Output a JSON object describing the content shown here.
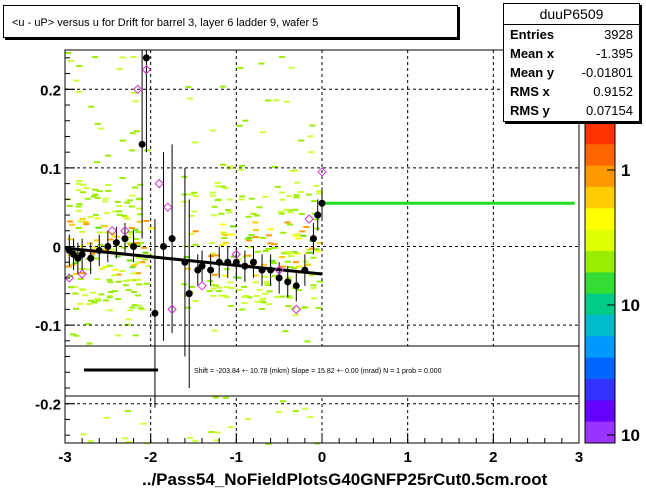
{
  "title": "<u - uP>       versus   u for Drift for barrel 3, layer 6 ladder 9, wafer 5",
  "stats": {
    "name": "duuP6509",
    "rows": [
      {
        "key": "Entries",
        "value": "3928"
      },
      {
        "key": "Mean x",
        "value": "-1.395"
      },
      {
        "key": "Mean y",
        "value": "-0.01801"
      },
      {
        "key": "RMS x",
        "value": "0.9152"
      },
      {
        "key": "RMS y",
        "value": "0.07154"
      }
    ]
  },
  "footer_label": "../Pass54_NoFieldPlotsG40GNFP25rCut0.5cm.root",
  "fit_legend": "Shift =  -203.84 +- 10.78 (mkm) Slope =    15.82 +- 0.00 (mrad)  N = 1 prob = 0.000",
  "colors": {
    "profile_marker": "#000000",
    "open_marker": "#cc33cc",
    "fit_line": "#000000",
    "green_line": "#22dd22",
    "grid": "#000000"
  },
  "chart_data": {
    "type": "scatter",
    "title": "<u - uP>       versus   u for Drift for barrel 3, layer 6 ladder 9, wafer 5",
    "xlabel": "",
    "ylabel": "",
    "xlim": [
      -3,
      3
    ],
    "ylim": [
      -0.25,
      0.25
    ],
    "x_ticks": [
      "-3",
      "-2",
      "-1",
      "0",
      "1",
      "2",
      "3"
    ],
    "y_ticks": [
      "-0.2",
      "-0.1",
      "0",
      "0.1",
      "0.2"
    ],
    "grid": true,
    "colorbar": {
      "ticks": [
        "1",
        "10",
        "10"
      ],
      "scale": "log"
    },
    "profile_points": [
      {
        "x": -2.95,
        "y": -0.005
      },
      {
        "x": -2.9,
        "y": -0.01
      },
      {
        "x": -2.85,
        "y": -0.015
      },
      {
        "x": -2.8,
        "y": -0.01
      },
      {
        "x": -2.7,
        "y": -0.015
      },
      {
        "x": -2.6,
        "y": -0.005
      },
      {
        "x": -2.5,
        "y": 0.0
      },
      {
        "x": -2.4,
        "y": 0.005
      },
      {
        "x": -2.3,
        "y": 0.01
      },
      {
        "x": -2.2,
        "y": 0.0
      },
      {
        "x": -2.1,
        "y": 0.13
      },
      {
        "x": -2.05,
        "y": 0.24
      },
      {
        "x": -1.95,
        "y": -0.085
      },
      {
        "x": -1.85,
        "y": 0.0
      },
      {
        "x": -1.75,
        "y": 0.01
      },
      {
        "x": -1.6,
        "y": -0.02
      },
      {
        "x": -1.55,
        "y": -0.06
      },
      {
        "x": -1.45,
        "y": -0.03
      },
      {
        "x": -1.4,
        "y": -0.025
      },
      {
        "x": -1.3,
        "y": -0.03
      },
      {
        "x": -1.2,
        "y": -0.02
      },
      {
        "x": -1.1,
        "y": -0.02
      },
      {
        "x": -1.0,
        "y": -0.02
      },
      {
        "x": -0.9,
        "y": -0.025
      },
      {
        "x": -0.8,
        "y": -0.02
      },
      {
        "x": -0.7,
        "y": -0.03
      },
      {
        "x": -0.6,
        "y": -0.03
      },
      {
        "x": -0.5,
        "y": -0.04
      },
      {
        "x": -0.4,
        "y": -0.045
      },
      {
        "x": -0.3,
        "y": -0.05
      },
      {
        "x": -0.2,
        "y": -0.03
      },
      {
        "x": -0.1,
        "y": 0.01
      },
      {
        "x": -0.05,
        "y": 0.04
      },
      {
        "x": 0.0,
        "y": 0.055
      }
    ],
    "open_points": [
      {
        "x": -2.95,
        "y": -0.04
      },
      {
        "x": -2.8,
        "y": -0.035
      },
      {
        "x": -2.45,
        "y": 0.02
      },
      {
        "x": -2.3,
        "y": 0.02
      },
      {
        "x": -2.15,
        "y": 0.2
      },
      {
        "x": -2.05,
        "y": 0.225
      },
      {
        "x": -1.9,
        "y": 0.08
      },
      {
        "x": -1.8,
        "y": 0.05
      },
      {
        "x": -1.75,
        "y": -0.08
      },
      {
        "x": -1.4,
        "y": -0.05
      },
      {
        "x": -1.0,
        "y": -0.01
      },
      {
        "x": -0.5,
        "y": -0.03
      },
      {
        "x": -0.3,
        "y": -0.08
      },
      {
        "x": -0.15,
        "y": 0.035
      },
      {
        "x": 0.0,
        "y": 0.095
      }
    ],
    "fit_line": {
      "x1": -3.0,
      "y1": -0.002,
      "x2": 0.0,
      "y2": -0.035
    },
    "green_line": {
      "x1": 0.0,
      "y1": 0.055,
      "x2": 2.95,
      "y2": 0.055
    }
  }
}
